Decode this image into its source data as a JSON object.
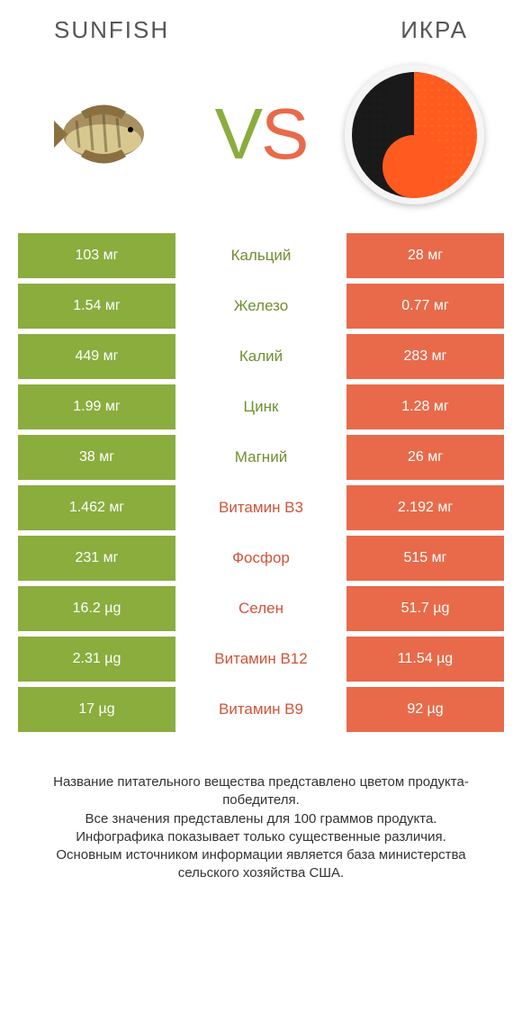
{
  "colors": {
    "green": "#8aad3e",
    "red": "#e86a4a",
    "label_green": "#6f9030",
    "label_red": "#d0543a",
    "bg": "#ffffff",
    "text": "#555555"
  },
  "header": {
    "left_title": "SUNFISH",
    "right_title": "ИКРА"
  },
  "vs": {
    "v": "V",
    "s": "S"
  },
  "fish": {
    "body_color": "#a89060",
    "fin_color": "#8a7040",
    "belly_color": "#d8c890",
    "stripe_color": "#5a5030"
  },
  "caviar": {
    "black": "#1a1a1a",
    "red": "#ff5a1f",
    "plate": "#ffffff"
  },
  "rows": [
    {
      "left": "103 мг",
      "label": "Кальций",
      "right": "28 мг",
      "winner": "left"
    },
    {
      "left": "1.54 мг",
      "label": "Железо",
      "right": "0.77 мг",
      "winner": "left"
    },
    {
      "left": "449 мг",
      "label": "Калий",
      "right": "283 мг",
      "winner": "left"
    },
    {
      "left": "1.99 мг",
      "label": "Цинк",
      "right": "1.28 мг",
      "winner": "left"
    },
    {
      "left": "38 мг",
      "label": "Магний",
      "right": "26 мг",
      "winner": "left"
    },
    {
      "left": "1.462 мг",
      "label": "Витамин B3",
      "right": "2.192 мг",
      "winner": "right"
    },
    {
      "left": "231 мг",
      "label": "Фосфор",
      "right": "515 мг",
      "winner": "right"
    },
    {
      "left": "16.2 µg",
      "label": "Селен",
      "right": "51.7 µg",
      "winner": "right"
    },
    {
      "left": "2.31 µg",
      "label": "Витамин B12",
      "right": "11.54 µg",
      "winner": "right"
    },
    {
      "left": "17 µg",
      "label": "Витамин B9",
      "right": "92 µg",
      "winner": "right"
    }
  ],
  "footer": {
    "line1": "Название питательного вещества представлено цветом продукта-победителя.",
    "line2": "Все значения представлены для 100 граммов продукта.",
    "line3": "Инфографика показывает только существенные различия.",
    "line4": "Основным источником информации является база министерства сельского хозяйства США."
  }
}
